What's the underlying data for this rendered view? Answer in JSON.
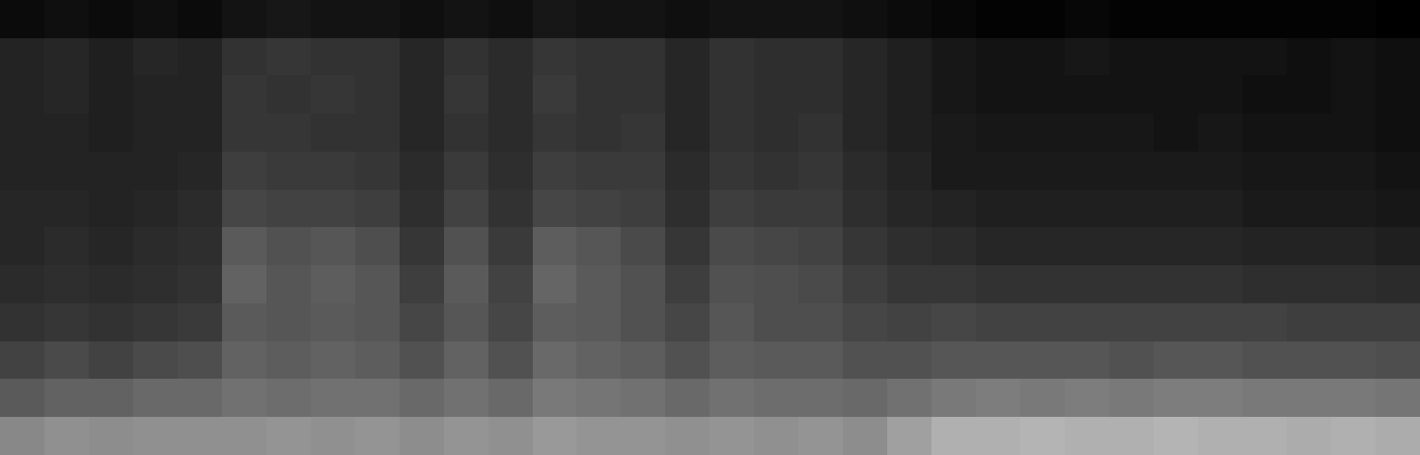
{
  "chart_data": {
    "type": "heatmap",
    "tick_labels": false,
    "cells": [
      [
        8,
        9,
        8,
        9,
        8,
        10,
        11,
        10,
        10,
        9,
        10,
        9,
        11,
        10,
        10,
        9,
        10,
        10,
        10,
        9,
        8,
        7,
        6,
        6,
        7,
        6,
        6,
        6,
        6,
        6,
        6,
        5
      ],
      [
        14,
        15,
        13,
        15,
        14,
        18,
        19,
        18,
        18,
        15,
        18,
        16,
        19,
        18,
        18,
        15,
        18,
        17,
        17,
        15,
        13,
        11,
        10,
        10,
        11,
        10,
        10,
        10,
        10,
        9,
        10,
        9
      ],
      [
        14,
        15,
        13,
        14,
        14,
        19,
        18,
        19,
        18,
        15,
        19,
        16,
        20,
        18,
        18,
        15,
        18,
        17,
        17,
        15,
        13,
        11,
        10,
        10,
        10,
        10,
        10,
        10,
        9,
        9,
        10,
        9
      ],
      [
        14,
        14,
        13,
        14,
        14,
        19,
        19,
        18,
        18,
        15,
        18,
        16,
        19,
        18,
        19,
        15,
        18,
        17,
        18,
        15,
        13,
        12,
        11,
        11,
        11,
        11,
        10,
        11,
        10,
        10,
        10,
        9
      ],
      [
        14,
        14,
        14,
        14,
        15,
        21,
        20,
        20,
        19,
        16,
        20,
        17,
        21,
        20,
        20,
        16,
        19,
        18,
        19,
        16,
        14,
        12,
        12,
        12,
        12,
        12,
        12,
        12,
        11,
        11,
        11,
        10
      ],
      [
        15,
        15,
        14,
        15,
        16,
        23,
        22,
        22,
        21,
        17,
        22,
        18,
        23,
        22,
        21,
        17,
        21,
        20,
        20,
        17,
        15,
        14,
        13,
        13,
        13,
        13,
        13,
        13,
        12,
        12,
        12,
        11
      ],
      [
        15,
        16,
        15,
        16,
        17,
        28,
        26,
        27,
        25,
        19,
        26,
        20,
        29,
        27,
        24,
        19,
        24,
        23,
        22,
        19,
        17,
        16,
        15,
        15,
        15,
        15,
        15,
        15,
        14,
        14,
        14,
        13
      ],
      [
        16,
        17,
        16,
        17,
        18,
        30,
        27,
        29,
        27,
        21,
        28,
        22,
        31,
        28,
        26,
        21,
        26,
        25,
        24,
        21,
        19,
        19,
        18,
        18,
        18,
        18,
        18,
        18,
        17,
        17,
        17,
        16
      ],
      [
        18,
        19,
        18,
        19,
        20,
        28,
        27,
        28,
        27,
        23,
        27,
        23,
        29,
        28,
        26,
        23,
        27,
        25,
        25,
        23,
        22,
        23,
        22,
        22,
        22,
        22,
        22,
        22,
        22,
        21,
        21,
        21
      ],
      [
        22,
        24,
        22,
        24,
        25,
        30,
        29,
        30,
        29,
        26,
        30,
        26,
        32,
        30,
        29,
        26,
        29,
        28,
        28,
        26,
        26,
        27,
        27,
        27,
        27,
        26,
        27,
        27,
        26,
        26,
        26,
        25
      ],
      [
        28,
        30,
        30,
        32,
        32,
        34,
        33,
        34,
        34,
        32,
        34,
        32,
        36,
        35,
        34,
        32,
        34,
        33,
        33,
        32,
        34,
        36,
        37,
        36,
        37,
        36,
        37,
        37,
        36,
        36,
        36,
        35
      ],
      [
        40,
        42,
        41,
        42,
        42,
        42,
        43,
        42,
        43,
        41,
        43,
        42,
        44,
        43,
        43,
        42,
        43,
        42,
        43,
        41,
        46,
        50,
        50,
        51,
        50,
        50,
        51,
        50,
        50,
        49,
        50,
        49
      ]
    ]
  }
}
